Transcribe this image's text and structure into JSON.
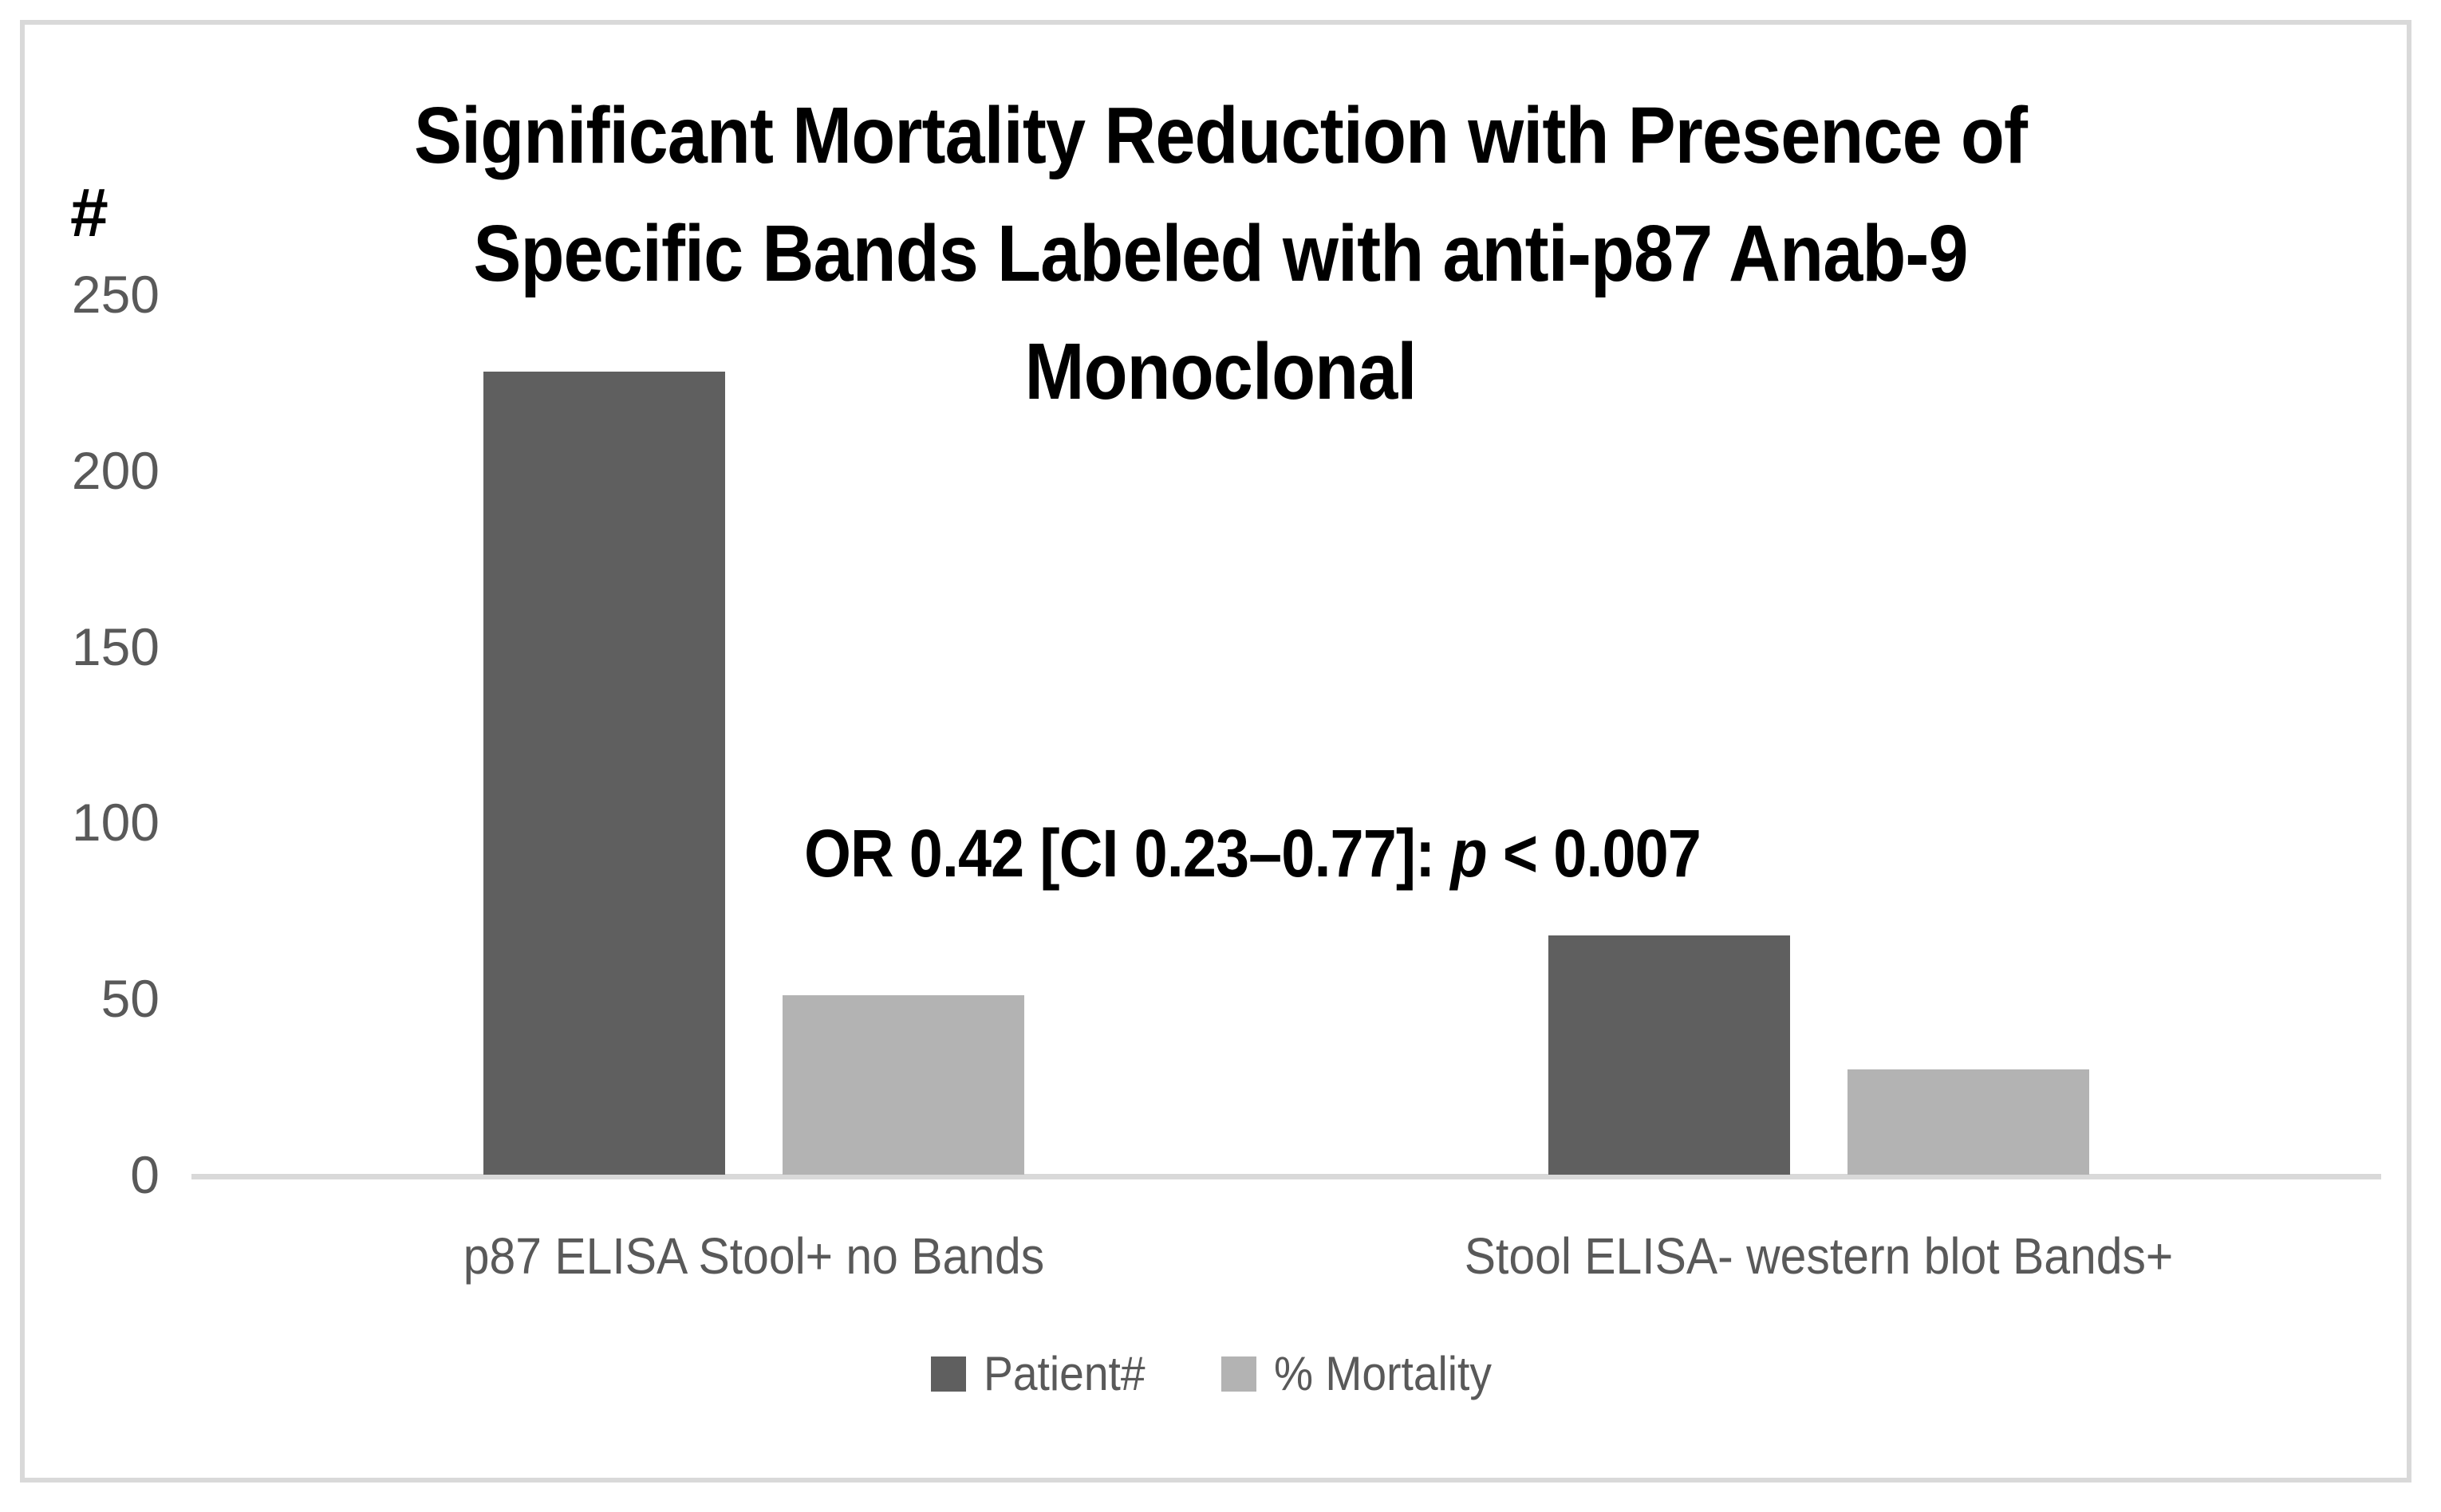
{
  "chart_data": {
    "type": "bar",
    "title": "Significant Mortality Reduction with Presence of Specific Bands Labeled with anti-p87 Anab-9 Monoclonal",
    "title_lines": [
      "Significant Mortality Reduction with Presence of",
      "Specific Bands Labeled with anti-p87 Anab-9",
      "Monoclonal"
    ],
    "ylabel": "#",
    "xlabel": "",
    "ylim": [
      0,
      250
    ],
    "yticks": [
      0,
      50,
      100,
      150,
      200,
      250
    ],
    "grid": false,
    "legend_position": "bottom",
    "categories": [
      "p87 ELISA Stool+ no Bands",
      "Stool ELISA- western blot Bands+"
    ],
    "series": [
      {
        "name": "Patient#",
        "color": "#5F5F5F",
        "values": [
          228,
          68
        ]
      },
      {
        "name": "% Mortality",
        "color": "#B3B3B3",
        "values": [
          51,
          30
        ]
      }
    ],
    "annotation": {
      "before_p": "OR 0.42 [CI 0.23–0.77]: ",
      "p_symbol": "p",
      "after_p": " < 0.007"
    }
  },
  "colors": {
    "background": "#FFFFFF",
    "frame_border": "#D9D9D9",
    "axis_line": "#D9D9D9",
    "tick_text": "#595959",
    "category_text": "#595959",
    "legend_text": "#595959",
    "title_text": "#000000",
    "annotation_text": "#000000"
  }
}
